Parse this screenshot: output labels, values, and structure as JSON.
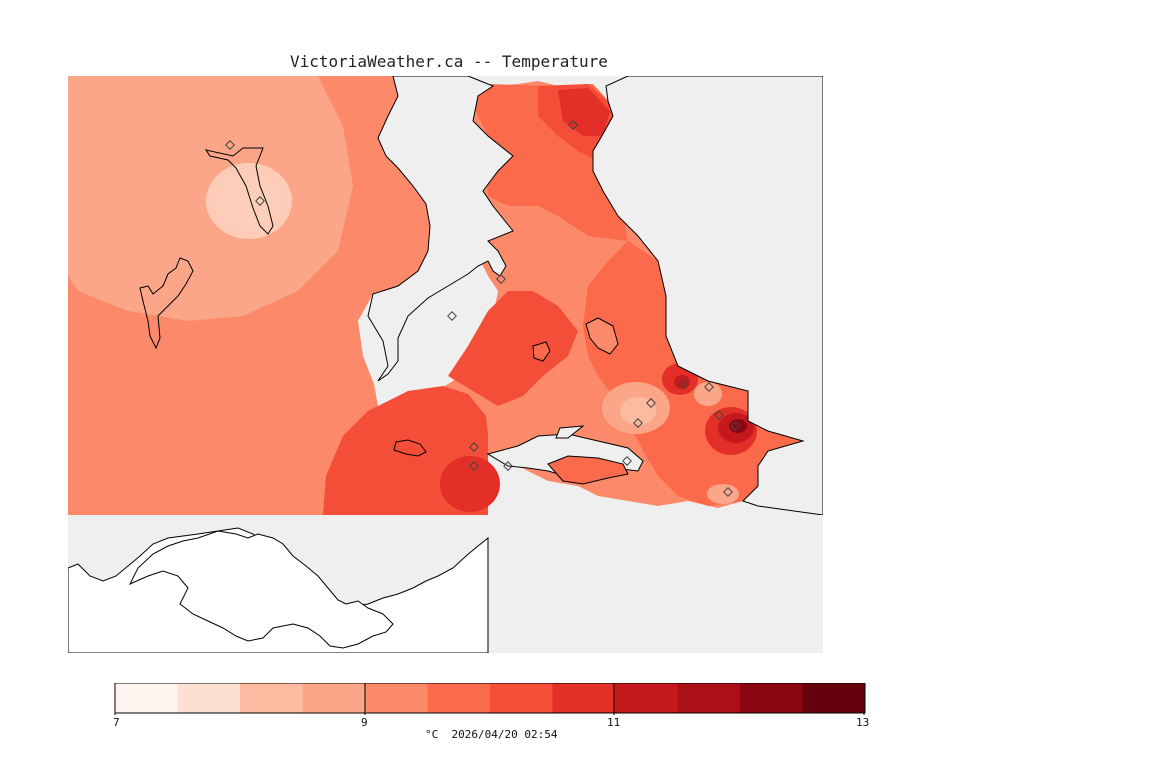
{
  "title": "VictoriaWeather.ca -- Temperature",
  "legend": {
    "min": 7,
    "max": 13,
    "tick_labels": [
      "7",
      "9",
      "11",
      "13"
    ],
    "colors": [
      "#fff5f0",
      "#fee0d2",
      "#fcbba1",
      "#fca689",
      "#fc8a6a",
      "#fb6a4a",
      "#f44d38",
      "#e32f27",
      "#c6191d",
      "#ab1016",
      "#8b0812",
      "#67000d"
    ],
    "caption": "°C  2026/04/20 02:54"
  },
  "map": {
    "background": "#efefef",
    "land_below_grid": "#ffffff",
    "coastline": "#000000",
    "station_marker": "diamond"
  }
}
